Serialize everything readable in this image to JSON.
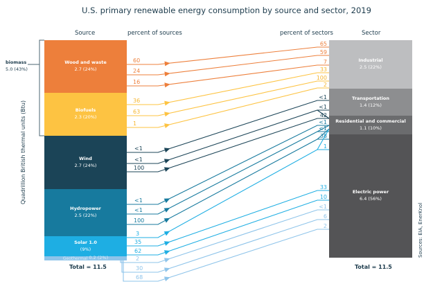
{
  "title": "U.S. primary renewable energy consumption by source and sector, 2019",
  "headers": {
    "source": "Source",
    "pct_sources": "percent of sources",
    "pct_sectors": "percent of sectors",
    "sector": "Sector"
  },
  "y_axis_label": "Quadrillion British thermal units (Btu)",
  "credit": "Sources: EIA, EnerKnol",
  "biomass": {
    "label": "biomass",
    "value": "5.0 (43%)"
  },
  "sources": [
    {
      "name": "Wood and waste",
      "value": "2.7 (24%)",
      "color": "#ED7F3B"
    },
    {
      "name": "Biofuels",
      "value": "2.3 (20%)",
      "color": "#FDC342"
    },
    {
      "name": "Wind",
      "value": "2.7 (24%)",
      "color": "#1B4457"
    },
    {
      "name": "Hydropower",
      "value": "2.5 (22%)",
      "color": "#177A9E"
    },
    {
      "name": "Solar 1.0",
      "value": "(9%)",
      "color": "#1EAEE3"
    },
    {
      "name": "Geothermal",
      "value": "0.2 (2%)",
      "color": "#8EC4EA"
    }
  ],
  "sectors": [
    {
      "name": "Industrial",
      "value": "2.5 (22%)",
      "color": "#BDBEC0"
    },
    {
      "name": "Transportation",
      "value": "1.4 (12%)",
      "color": "#8D8E90"
    },
    {
      "name": "Residential and commercial",
      "value": "1.1 (10%)",
      "color": "#6B6C6E"
    },
    {
      "name": "Electric power",
      "value": "6.4 (56%)",
      "color": "#545456"
    }
  ],
  "source_total": "Total = 11.5",
  "sector_total": "Total = 11.5",
  "flows": [
    {
      "source": 0,
      "pct_source": "60",
      "sector": 0,
      "pct_sector": "65"
    },
    {
      "source": 0,
      "pct_source": "24",
      "sector": 2,
      "pct_sector": "59"
    },
    {
      "source": 0,
      "pct_source": "16",
      "sector": 3,
      "pct_sector": "7"
    },
    {
      "source": 1,
      "pct_source": "36",
      "sector": 0,
      "pct_sector": "33"
    },
    {
      "source": 1,
      "pct_source": "63",
      "sector": 1,
      "pct_sector": "100"
    },
    {
      "source": 1,
      "pct_source": "1",
      "sector": 2,
      "pct_sector": "2"
    },
    {
      "source": 2,
      "pct_source": "<1",
      "sector": 0,
      "pct_sector": "<1"
    },
    {
      "source": 2,
      "pct_source": "<1",
      "sector": 2,
      "pct_sector": "<1"
    },
    {
      "source": 2,
      "pct_source": "100",
      "sector": 3,
      "pct_sector": "42"
    },
    {
      "source": 3,
      "pct_source": "<1",
      "sector": 0,
      "pct_sector": "<1"
    },
    {
      "source": 3,
      "pct_source": "<1",
      "sector": 2,
      "pct_sector": "<1"
    },
    {
      "source": 3,
      "pct_source": "100",
      "sector": 3,
      "pct_sector": "38"
    },
    {
      "source": 4,
      "pct_source": "3",
      "sector": 0,
      "pct_sector": "1"
    },
    {
      "source": 4,
      "pct_source": "35",
      "sector": 2,
      "pct_sector": "33"
    },
    {
      "source": 4,
      "pct_source": "62",
      "sector": 3,
      "pct_sector": "10"
    },
    {
      "source": 5,
      "pct_source": "2",
      "sector": 0,
      "pct_sector": "<1"
    },
    {
      "source": 5,
      "pct_source": "30",
      "sector": 2,
      "pct_sector": "6"
    },
    {
      "source": 5,
      "pct_source": "68",
      "sector": 3,
      "pct_sector": "2"
    }
  ]
}
